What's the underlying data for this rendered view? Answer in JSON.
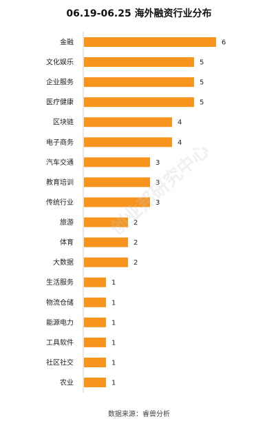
{
  "chart_data": {
    "type": "bar",
    "orientation": "horizontal",
    "title": "06.19-06.25 海外融资行业分布",
    "categories": [
      "金融",
      "文化娱乐",
      "企业服务",
      "医疗健康",
      "区块链",
      "电子商务",
      "汽车交通",
      "教育培训",
      "传统行业",
      "旅游",
      "体育",
      "大数据",
      "生活服务",
      "物流仓储",
      "能源电力",
      "工具软件",
      "社区社交",
      "农业"
    ],
    "values": [
      6,
      5,
      5,
      5,
      4,
      4,
      3,
      3,
      3,
      2,
      2,
      2,
      1,
      1,
      1,
      1,
      1,
      1
    ],
    "xlim": [
      0,
      6
    ],
    "grid": false,
    "legend": "none",
    "bar_color": "#F7941E"
  },
  "source": "数据来源：睿兽分析",
  "watermark": "创业邦研究中心"
}
